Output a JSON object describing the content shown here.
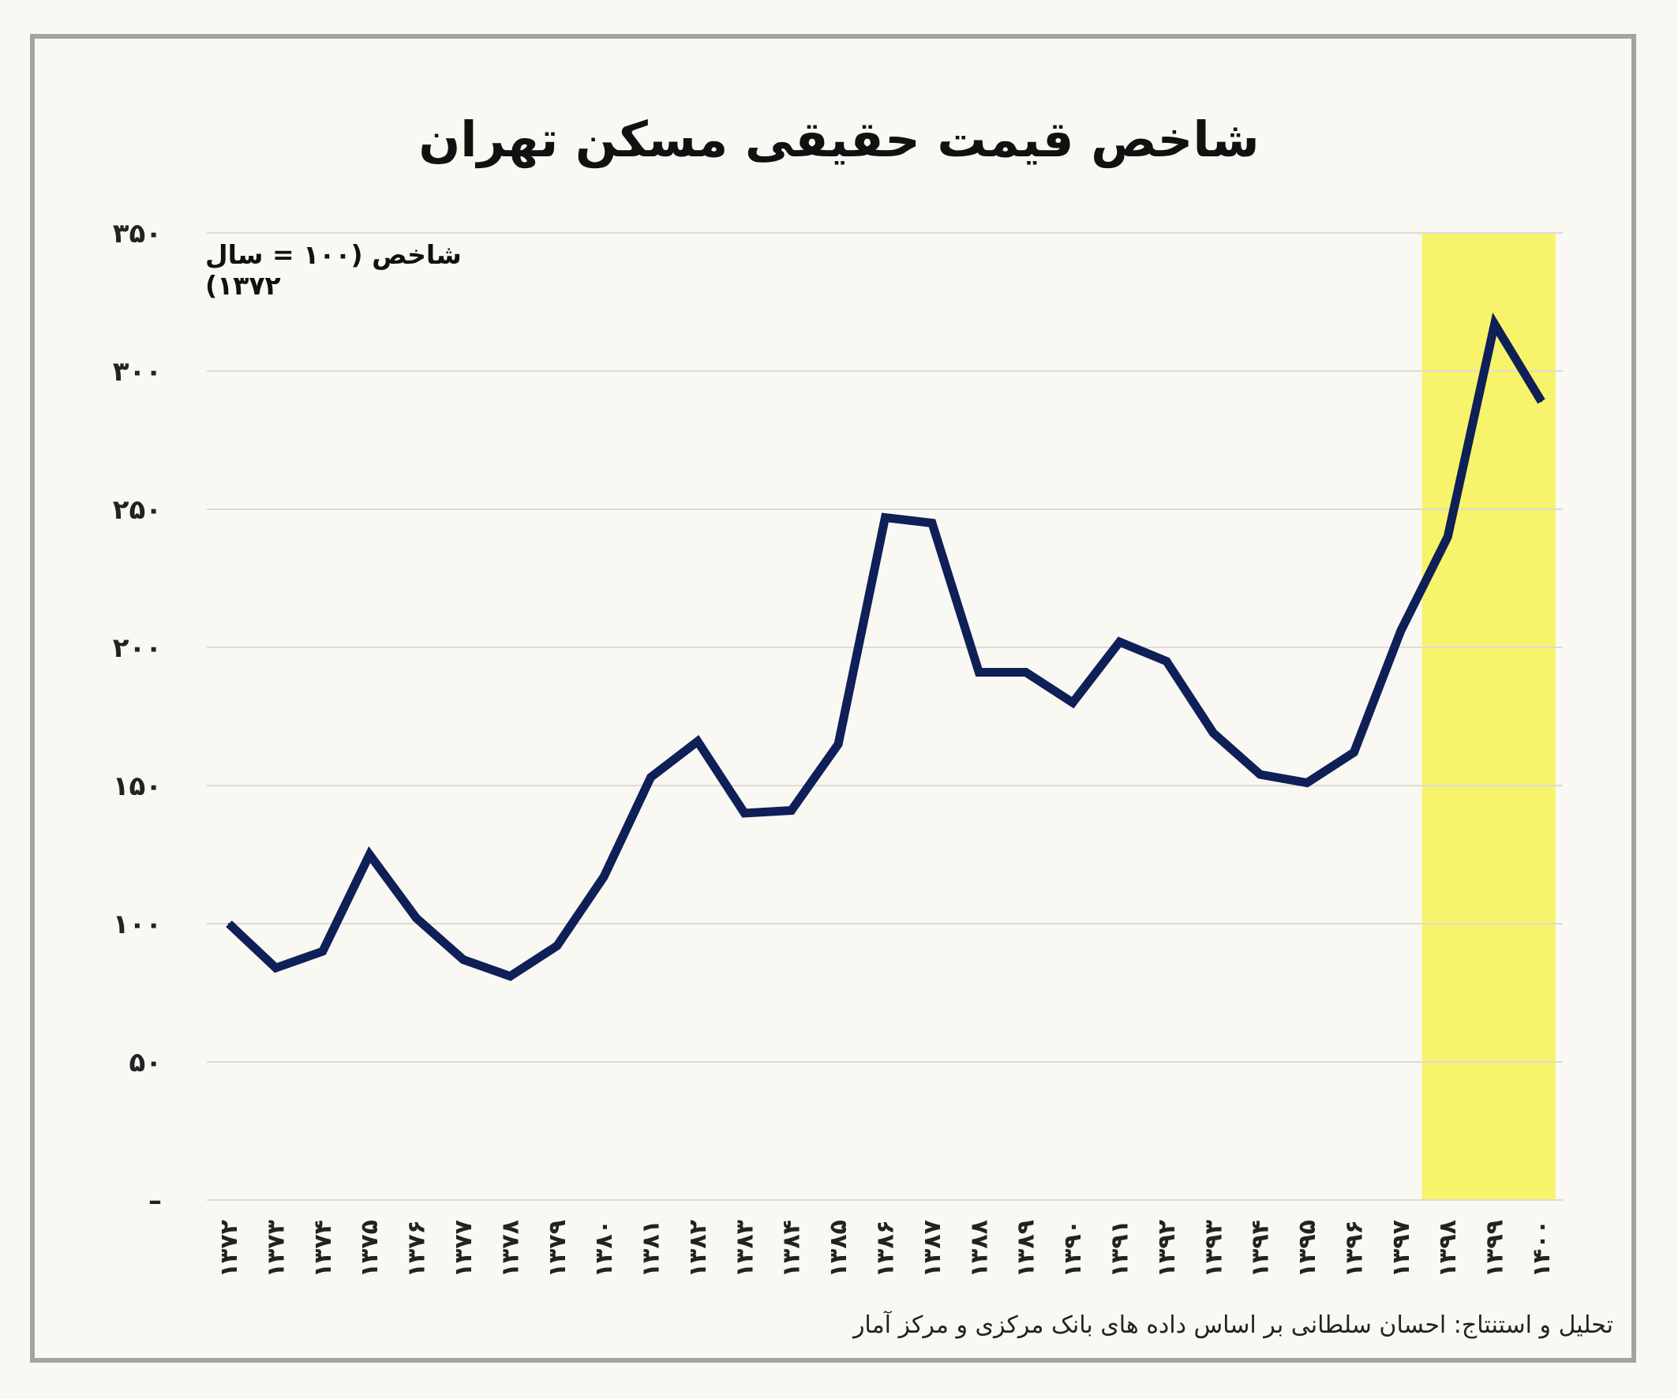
{
  "title": "شاخص قیمت حقیقی مسکن تهران",
  "unit_label": "شاخص (۱۰۰ = سال ۱۳۷۲)",
  "source": "تحلیل و استنتاج: احسان سلطانی بر اساس داده های بانک مرکزی و مرکز آمار",
  "colors": {
    "line": "#0f1f57",
    "highlight": "#f7f36b",
    "grid": "#dedbd6",
    "frame": "#a3a3a1",
    "background": "#faf8f3"
  },
  "chart_data": {
    "type": "line",
    "title": "شاخص قیمت حقیقی مسکن تهران",
    "ylabel": "شاخص (۱۰۰ = سال ۱۳۷۲)",
    "xlabel": "",
    "ylim": [
      0,
      350
    ],
    "grid": true,
    "y_ticks": [
      0,
      50,
      100,
      150,
      200,
      250,
      300,
      350
    ],
    "y_tick_labels": [
      "–",
      "۵۰",
      "۱۰۰",
      "۱۵۰",
      "۲۰۰",
      "۲۵۰",
      "۳۰۰",
      "۳۵۰"
    ],
    "categories": [
      "۱۳۷۲",
      "۱۳۷۳",
      "۱۳۷۴",
      "۱۳۷۵",
      "۱۳۷۶",
      "۱۳۷۷",
      "۱۳۷۸",
      "۱۳۷۹",
      "۱۳۸۰",
      "۱۳۸۱",
      "۱۳۸۲",
      "۱۳۸۳",
      "۱۳۸۴",
      "۱۳۸۵",
      "۱۳۸۶",
      "۱۳۸۷",
      "۱۳۸۸",
      "۱۳۸۹",
      "۱۳۹۰",
      "۱۳۹۱",
      "۱۳۹۲",
      "۱۳۹۳",
      "۱۳۹۴",
      "۱۳۹۵",
      "۱۳۹۶",
      "۱۳۹۷",
      "۱۳۹۸",
      "۱۳۹۹",
      "۱۴۰۰"
    ],
    "series": [
      {
        "values": [
          100,
          84,
          90,
          125,
          102,
          87,
          81,
          92,
          117,
          153,
          166,
          140,
          141,
          165,
          247,
          245,
          191,
          191,
          180,
          202,
          195,
          169,
          154,
          151,
          162,
          206,
          240,
          317,
          289
        ]
      }
    ],
    "highlight_range": [
      "۱۳۹۸",
      "۱۴۰۰"
    ]
  }
}
